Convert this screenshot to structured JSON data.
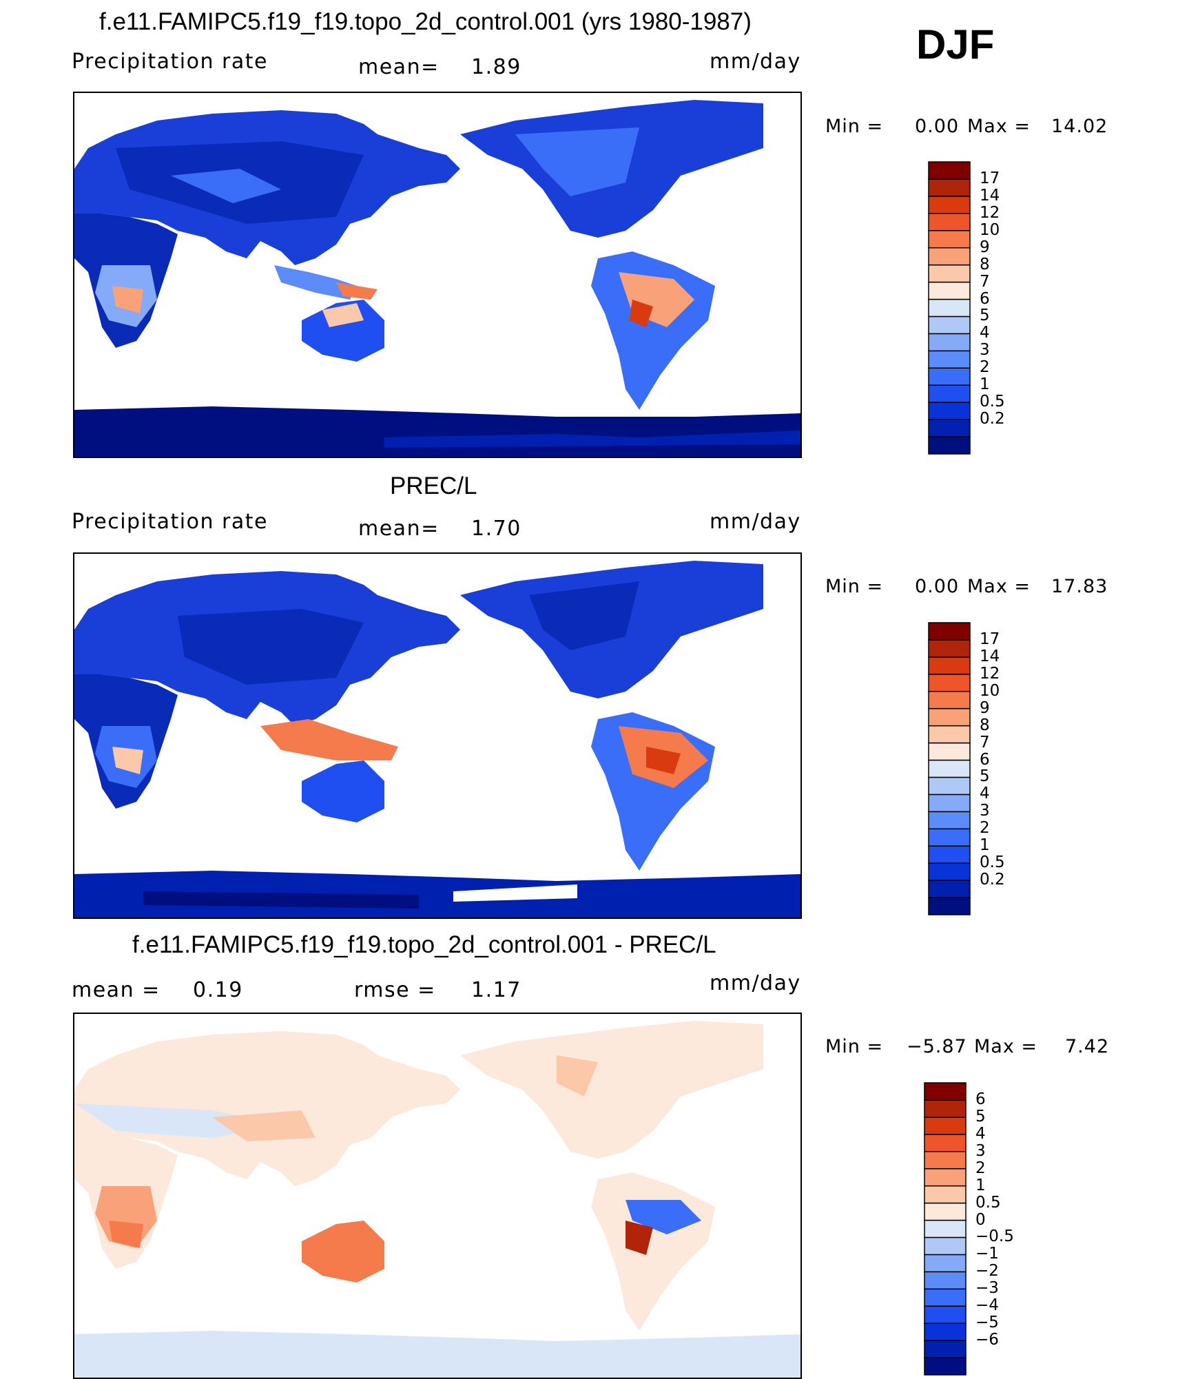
{
  "season": "DJF",
  "colors": {
    "precip_scale": [
      "#000f80",
      "#0020b0",
      "#0833d8",
      "#1f4ff0",
      "#3a6ef8",
      "#5c8cfa",
      "#85aaf8",
      "#b0c8f5",
      "#d8e6f7",
      "#fde9dc",
      "#fbc8aa",
      "#f9a27a",
      "#f57a4c",
      "#ef5528",
      "#d93a10",
      "#b0240a",
      "#800000"
    ],
    "diff_scale": [
      "#000f80",
      "#0020b0",
      "#0833d8",
      "#1f4ff0",
      "#3a6ef8",
      "#5c8cfa",
      "#85aaf8",
      "#b0c8f5",
      "#d8e6f7",
      "#fde9dc",
      "#fbc8aa",
      "#f9a27a",
      "#f57a4c",
      "#ef5528",
      "#d93a10",
      "#b0240a",
      "#800000"
    ]
  },
  "chart_data": [
    {
      "type": "heatmap",
      "title": "f.e11.FAMIPC5.f19_f19.topo_2d_control.001 (yrs 1980-1987)",
      "variable": "Precipitation rate",
      "mean_label": "mean=",
      "mean_value": "1.89",
      "units": "mm/day",
      "min_label": "Min =",
      "min_value": "0.00",
      "max_label": "Max =",
      "max_value": "14.02",
      "colorbar_labels": [
        "17",
        "14",
        "12",
        "10",
        "9",
        "8",
        "7",
        "6",
        "5",
        "4",
        "3",
        "2",
        "1",
        "0.5",
        "0.2"
      ]
    },
    {
      "type": "heatmap",
      "title": "PREC/L",
      "variable": "Precipitation rate",
      "mean_label": "mean=",
      "mean_value": "1.70",
      "units": "mm/day",
      "min_label": "Min =",
      "min_value": "0.00",
      "max_label": "Max =",
      "max_value": "17.83",
      "colorbar_labels": [
        "17",
        "14",
        "12",
        "10",
        "9",
        "8",
        "7",
        "6",
        "5",
        "4",
        "3",
        "2",
        "1",
        "0.5",
        "0.2"
      ]
    },
    {
      "type": "heatmap",
      "title": "f.e11.FAMIPC5.f19_f19.topo_2d_control.001 - PREC/L",
      "mean_label": "mean =",
      "mean_value": "0.19",
      "rmse_label": "rmse =",
      "rmse_value": "1.17",
      "units": "mm/day",
      "min_label": "Min =",
      "min_value": "−5.87",
      "max_label": "Max =",
      "max_value": "7.42",
      "colorbar_labels": [
        "6",
        "5",
        "4",
        "3",
        "2",
        "1",
        "0.5",
        "0",
        "−0.5",
        "−1",
        "−2",
        "−3",
        "−4",
        "−5",
        "−6"
      ]
    }
  ]
}
